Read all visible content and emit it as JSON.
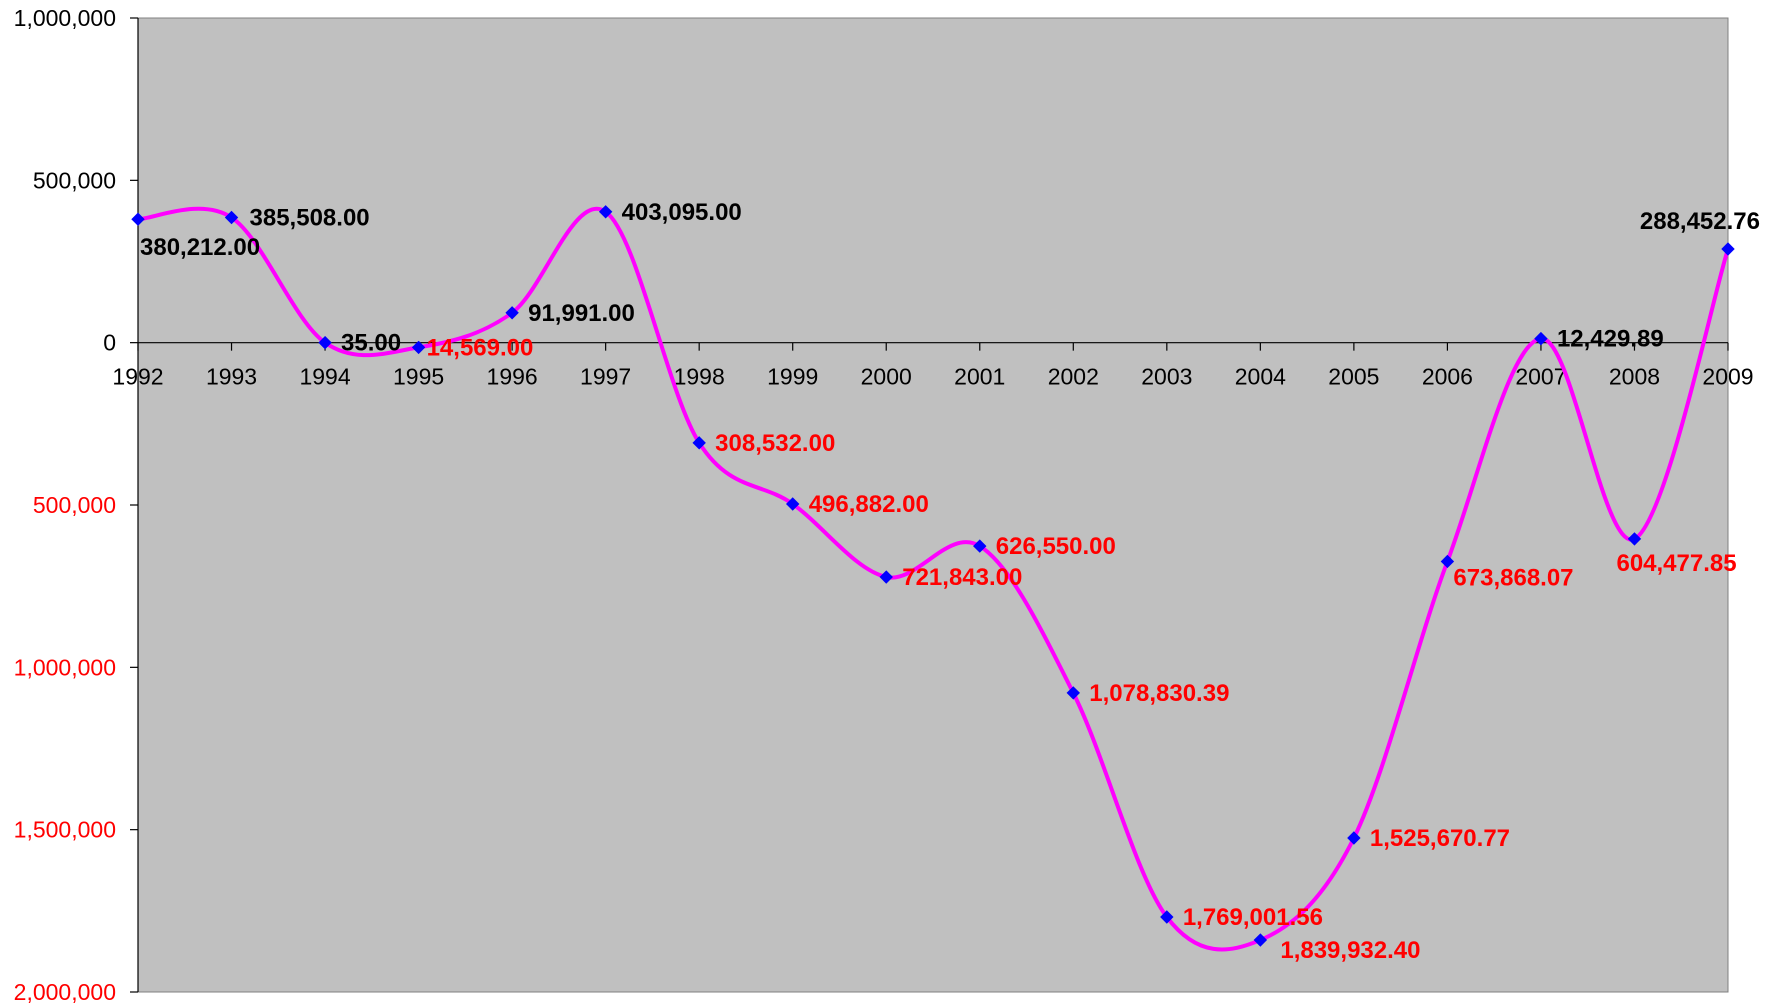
{
  "chart_data": {
    "type": "line",
    "title": "",
    "xlabel": "",
    "ylabel": "",
    "categories": [
      "1992",
      "1993",
      "1994",
      "1995",
      "1996",
      "1997",
      "1998",
      "1999",
      "2000",
      "2001",
      "2002",
      "2003",
      "2004",
      "2005",
      "2006",
      "2007",
      "2008",
      "2009"
    ],
    "values": [
      380212.0,
      385508.0,
      35.0,
      -14569.0,
      91991.0,
      403095.0,
      -308532.0,
      -496882.0,
      -721843.0,
      -626550.0,
      -1078830.39,
      -1769001.56,
      -1839932.4,
      -1525670.77,
      -673868.07,
      12429.89,
      -604477.85,
      288452.76
    ],
    "data_labels": [
      "380,212.00",
      "385,508.00",
      "35.00",
      "14,569.00",
      "91,991.00",
      "403,095.00",
      "308,532.00",
      "496,882.00",
      "721,843.00",
      "626,550.00",
      "1,078,830.39",
      "1,769,001.56",
      "1,839,932.40",
      "1,525,670.77",
      "673,868.07",
      "12,429.89",
      "604,477.85",
      "288,452.76"
    ],
    "ylim": [
      -2000000,
      1000000
    ],
    "y_ticks": [
      {
        "value": 1000000,
        "label": "1,000,000"
      },
      {
        "value": 500000,
        "label": "500,000"
      },
      {
        "value": 0,
        "label": "0"
      },
      {
        "value": -500000,
        "label": "500,000"
      },
      {
        "value": -1000000,
        "label": "1,000,000"
      },
      {
        "value": -1500000,
        "label": "1,500,000"
      },
      {
        "value": -2000000,
        "label": "2,000,000"
      }
    ],
    "grid": false,
    "smooth": true,
    "colors": {
      "plot_background": "#c0c0c0",
      "line": "#ff00ff",
      "marker": "#0000ff",
      "positive_label": "#000000",
      "negative_label": "#ff0000"
    }
  }
}
